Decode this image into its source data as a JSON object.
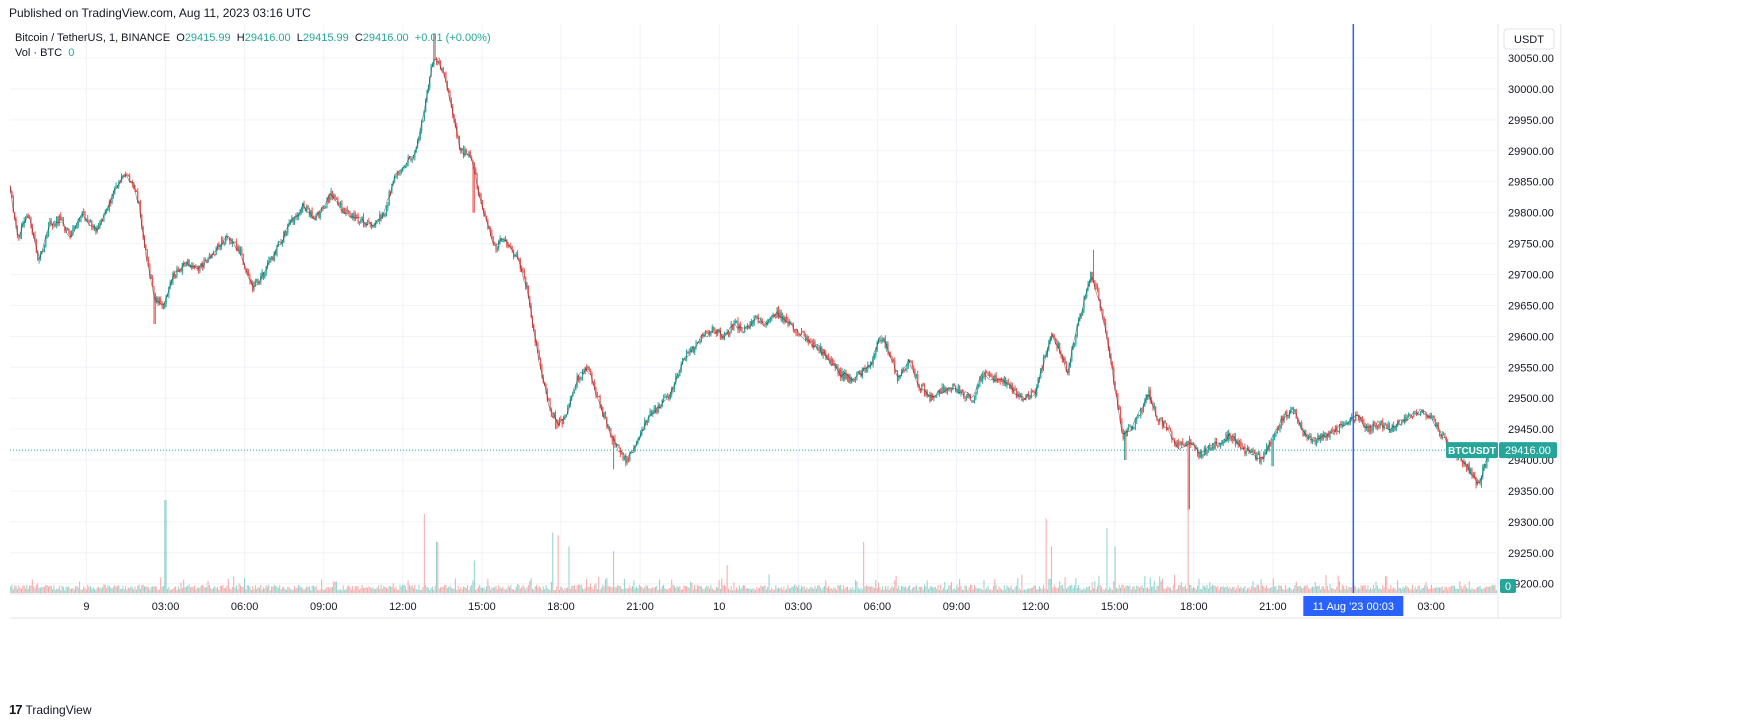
{
  "published": "Published on TradingView.com, Aug 11, 2023 03:16 UTC",
  "footer": {
    "logo_glyph": "17",
    "brand": "TradingView"
  },
  "colors": {
    "up": "#26a69a",
    "down": "#ef5350",
    "crosshair": "#2962ff",
    "grid": "#f0f3fa",
    "text": "#131722",
    "price_line": "#26a69a"
  },
  "chart_data": {
    "type": "candlestick",
    "symbol_line": {
      "name": "Bitcoin / TetherUS, 1, BINANCE",
      "o_label": "O",
      "o": "29415.99",
      "h_label": "H",
      "h": "29416.00",
      "l_label": "L",
      "l": "29415.99",
      "c_label": "C",
      "c": "29416.00",
      "change": "+0.01 (+0.00%)"
    },
    "volume_line": {
      "name": "Vol · BTC",
      "value": "0"
    },
    "currency": "USDT",
    "y_ticks": [
      "30050.00",
      "30000.00",
      "29950.00",
      "29900.00",
      "29850.00",
      "29800.00",
      "29750.00",
      "29700.00",
      "29650.00",
      "29600.00",
      "29550.00",
      "29500.00",
      "29450.00",
      "29400.00",
      "29350.00",
      "29300.00",
      "29250.00",
      "29200.00"
    ],
    "ylim": [
      29185,
      30105
    ],
    "x_ticks": [
      "9",
      "03:00",
      "06:00",
      "09:00",
      "12:00",
      "15:00",
      "18:00",
      "21:00",
      "10",
      "03:00",
      "06:00",
      "09:00",
      "12:00",
      "15:00",
      "18:00",
      "21:00",
      "03:00"
    ],
    "x_tick_hours": [
      0,
      3,
      6,
      9,
      12,
      15,
      18,
      21,
      24,
      27,
      30,
      33,
      36,
      39,
      42,
      45,
      51
    ],
    "x_range_hours": [
      -2.9,
      53.5
    ],
    "price_path": [
      [
        -2.9,
        29840
      ],
      [
        -2.6,
        29760
      ],
      [
        -2.2,
        29800
      ],
      [
        -1.8,
        29720
      ],
      [
        -1.4,
        29780
      ],
      [
        -1.0,
        29790
      ],
      [
        -0.6,
        29760
      ],
      [
        -0.2,
        29800
      ],
      [
        0.4,
        29770
      ],
      [
        0.9,
        29820
      ],
      [
        1.4,
        29860
      ],
      [
        1.8,
        29845
      ],
      [
        2.0,
        29810
      ],
      [
        2.3,
        29720
      ],
      [
        2.6,
        29660
      ],
      [
        2.9,
        29650
      ],
      [
        3.3,
        29700
      ],
      [
        3.8,
        29720
      ],
      [
        4.3,
        29710
      ],
      [
        4.8,
        29735
      ],
      [
        5.3,
        29760
      ],
      [
        5.8,
        29740
      ],
      [
        6.1,
        29700
      ],
      [
        6.3,
        29680
      ],
      [
        6.7,
        29700
      ],
      [
        7.2,
        29740
      ],
      [
        7.7,
        29780
      ],
      [
        8.2,
        29810
      ],
      [
        8.7,
        29790
      ],
      [
        9.3,
        29830
      ],
      [
        9.8,
        29800
      ],
      [
        10.3,
        29790
      ],
      [
        10.9,
        29780
      ],
      [
        11.3,
        29800
      ],
      [
        11.7,
        29860
      ],
      [
        12.1,
        29880
      ],
      [
        12.5,
        29900
      ],
      [
        12.8,
        29960
      ],
      [
        13.1,
        30040
      ],
      [
        13.3,
        30050
      ],
      [
        13.6,
        30020
      ],
      [
        13.9,
        29960
      ],
      [
        14.2,
        29900
      ],
      [
        14.6,
        29890
      ],
      [
        14.9,
        29830
      ],
      [
        15.2,
        29780
      ],
      [
        15.5,
        29740
      ],
      [
        15.8,
        29760
      ],
      [
        16.1,
        29740
      ],
      [
        16.4,
        29720
      ],
      [
        16.7,
        29680
      ],
      [
        17.0,
        29600
      ],
      [
        17.3,
        29530
      ],
      [
        17.6,
        29480
      ],
      [
        17.9,
        29460
      ],
      [
        18.2,
        29470
      ],
      [
        18.6,
        29530
      ],
      [
        19.0,
        29550
      ],
      [
        19.4,
        29500
      ],
      [
        19.8,
        29450
      ],
      [
        20.1,
        29420
      ],
      [
        20.5,
        29400
      ],
      [
        20.9,
        29430
      ],
      [
        21.3,
        29470
      ],
      [
        21.8,
        29490
      ],
      [
        22.2,
        29510
      ],
      [
        22.6,
        29560
      ],
      [
        23.0,
        29580
      ],
      [
        23.4,
        29600
      ],
      [
        23.8,
        29610
      ],
      [
        24.2,
        29600
      ],
      [
        24.6,
        29620
      ],
      [
        25.0,
        29610
      ],
      [
        25.4,
        29630
      ],
      [
        25.8,
        29620
      ],
      [
        26.2,
        29640
      ],
      [
        26.6,
        29620
      ],
      [
        27.0,
        29610
      ],
      [
        27.4,
        29590
      ],
      [
        27.8,
        29580
      ],
      [
        28.2,
        29560
      ],
      [
        28.6,
        29540
      ],
      [
        29.0,
        29530
      ],
      [
        29.4,
        29540
      ],
      [
        29.8,
        29560
      ],
      [
        30.1,
        29600
      ],
      [
        30.4,
        29580
      ],
      [
        30.8,
        29530
      ],
      [
        31.2,
        29560
      ],
      [
        31.6,
        29520
      ],
      [
        32.0,
        29500
      ],
      [
        32.4,
        29510
      ],
      [
        32.8,
        29520
      ],
      [
        33.2,
        29510
      ],
      [
        33.6,
        29500
      ],
      [
        34.0,
        29540
      ],
      [
        34.4,
        29530
      ],
      [
        34.8,
        29530
      ],
      [
        35.2,
        29510
      ],
      [
        35.6,
        29500
      ],
      [
        36.0,
        29510
      ],
      [
        36.3,
        29560
      ],
      [
        36.6,
        29600
      ],
      [
        36.9,
        29580
      ],
      [
        37.2,
        29540
      ],
      [
        37.5,
        29600
      ],
      [
        37.8,
        29650
      ],
      [
        38.1,
        29700
      ],
      [
        38.4,
        29660
      ],
      [
        38.7,
        29600
      ],
      [
        39.0,
        29520
      ],
      [
        39.3,
        29440
      ],
      [
        39.6,
        29450
      ],
      [
        40.0,
        29480
      ],
      [
        40.3,
        29510
      ],
      [
        40.6,
        29470
      ],
      [
        41.0,
        29450
      ],
      [
        41.4,
        29420
      ],
      [
        41.8,
        29430
      ],
      [
        42.2,
        29410
      ],
      [
        42.6,
        29420
      ],
      [
        43.0,
        29430
      ],
      [
        43.4,
        29440
      ],
      [
        43.8,
        29420
      ],
      [
        44.2,
        29410
      ],
      [
        44.6,
        29400
      ],
      [
        45.0,
        29440
      ],
      [
        45.4,
        29470
      ],
      [
        45.8,
        29480
      ],
      [
        46.2,
        29440
      ],
      [
        46.6,
        29430
      ],
      [
        47.0,
        29440
      ],
      [
        47.4,
        29450
      ],
      [
        47.8,
        29460
      ],
      [
        48.2,
        29470
      ],
      [
        48.6,
        29450
      ],
      [
        49.0,
        29460
      ],
      [
        49.4,
        29450
      ],
      [
        49.8,
        29460
      ],
      [
        50.2,
        29470
      ],
      [
        50.6,
        29480
      ],
      [
        51.0,
        29470
      ],
      [
        51.4,
        29440
      ],
      [
        51.8,
        29420
      ],
      [
        52.2,
        29400
      ],
      [
        52.5,
        29380
      ],
      [
        52.8,
        29360
      ],
      [
        53.1,
        29400
      ],
      [
        53.4,
        29416
      ]
    ],
    "price_spikes": [
      [
        2.6,
        29620
      ],
      [
        3.0,
        29650
      ],
      [
        13.2,
        30090
      ],
      [
        14.7,
        29800
      ],
      [
        17.8,
        29450
      ],
      [
        20.0,
        29385
      ],
      [
        38.2,
        29740
      ],
      [
        39.4,
        29400
      ],
      [
        41.8,
        29320
      ],
      [
        45.0,
        29390
      ],
      [
        52.9,
        29355
      ]
    ],
    "volume_max": 1.0,
    "volume_spikes": [
      [
        3.0,
        1.0
      ],
      [
        12.8,
        0.85
      ],
      [
        13.3,
        0.55
      ],
      [
        14.7,
        0.35
      ],
      [
        17.7,
        0.65
      ],
      [
        17.9,
        0.62
      ],
      [
        18.3,
        0.5
      ],
      [
        20.0,
        0.45
      ],
      [
        24.3,
        0.3
      ],
      [
        29.5,
        0.55
      ],
      [
        36.4,
        0.8
      ],
      [
        36.6,
        0.5
      ],
      [
        38.7,
        0.7
      ],
      [
        39.0,
        0.5
      ],
      [
        41.8,
        0.9
      ],
      [
        49.3,
        0.18
      ]
    ],
    "volume_ylim": [
      0,
      1
    ],
    "last_price_label": "BTCUSDT",
    "last_price": "29416.00",
    "last_price_value": 29416,
    "volume_badge": "0",
    "crosshair_label": "11 Aug '23   00:03",
    "crosshair_hour": 48.05,
    "grid": true
  }
}
